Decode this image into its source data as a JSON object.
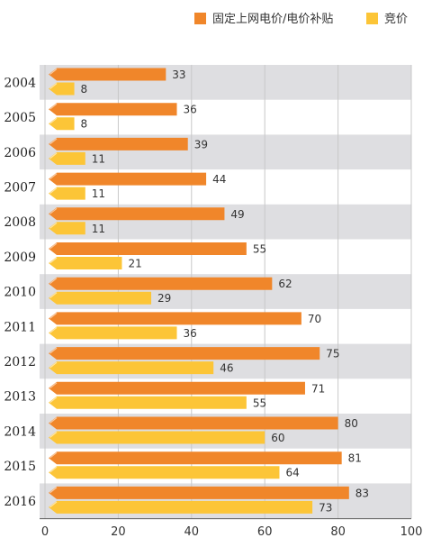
{
  "colors": {
    "series_0": "#F0862A",
    "series_1": "#FCC537",
    "band": "#DEDEE1",
    "grid": "#C8C8C8",
    "axis": "#555555"
  },
  "chart_data": {
    "type": "bar",
    "orientation": "horizontal",
    "title": "",
    "xlabel": "",
    "ylabel": "",
    "categories": [
      "2004",
      "2005",
      "2006",
      "2007",
      "2008",
      "2009",
      "2010",
      "2011",
      "2012",
      "2013",
      "2014",
      "2015",
      "2016"
    ],
    "series": [
      {
        "name": "固定上网电价/电价补贴",
        "values": [
          33,
          36,
          39,
          44,
          49,
          55,
          62,
          70,
          75,
          71,
          80,
          81,
          83
        ]
      },
      {
        "name": "竞价",
        "values": [
          8,
          8,
          11,
          11,
          11,
          21,
          29,
          36,
          46,
          55,
          60,
          64,
          73
        ]
      }
    ],
    "xlim": [
      0,
      100
    ],
    "xticks": [
      "0",
      "20",
      "40",
      "60",
      "80",
      "100"
    ],
    "grid": true,
    "legend_position": "top-right"
  }
}
